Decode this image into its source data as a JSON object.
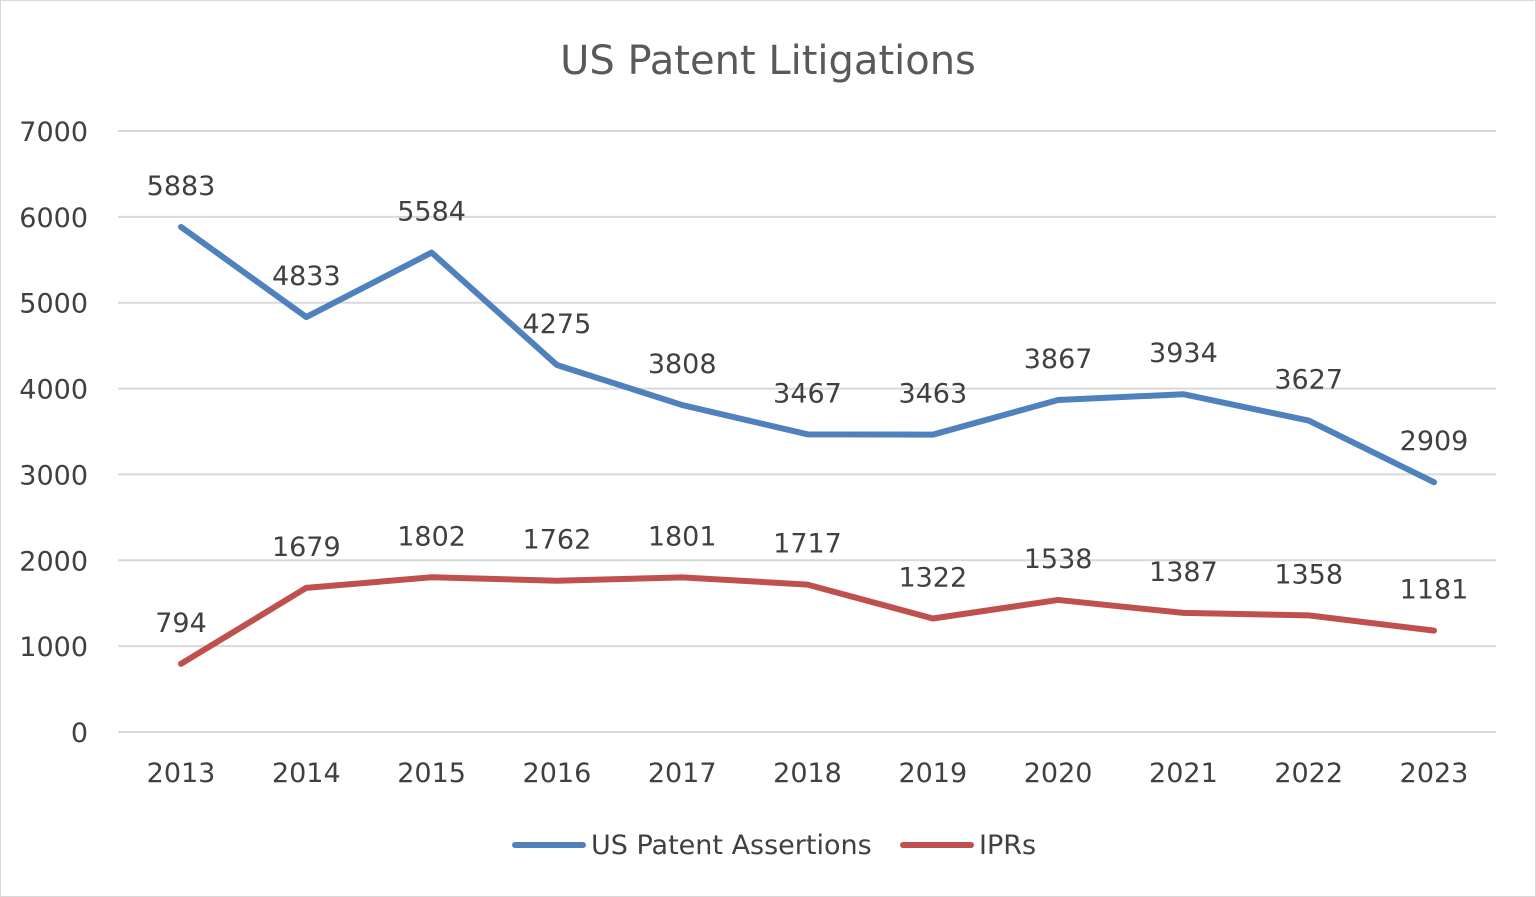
{
  "chart_data": {
    "type": "line",
    "title": "US Patent Litigations",
    "xlabel": "",
    "ylabel": "",
    "categories": [
      "2013",
      "2014",
      "2015",
      "2016",
      "2017",
      "2018",
      "2019",
      "2020",
      "2021",
      "2022",
      "2023"
    ],
    "ylim": [
      0,
      7000
    ],
    "yticks": [
      "0",
      "1000",
      "2000",
      "3000",
      "4000",
      "5000",
      "6000",
      "7000"
    ],
    "grid": true,
    "legend_position": "bottom",
    "series": [
      {
        "name": "US Patent Assertions",
        "color": "#4F81BD",
        "values": [
          5883,
          4833,
          5584,
          4275,
          3808,
          3467,
          3463,
          3867,
          3934,
          3627,
          2909
        ]
      },
      {
        "name": "IPRs",
        "color": "#C0504D",
        "values": [
          794,
          1679,
          1802,
          1762,
          1801,
          1717,
          1322,
          1538,
          1387,
          1358,
          1181
        ]
      }
    ],
    "data_labels": true
  }
}
